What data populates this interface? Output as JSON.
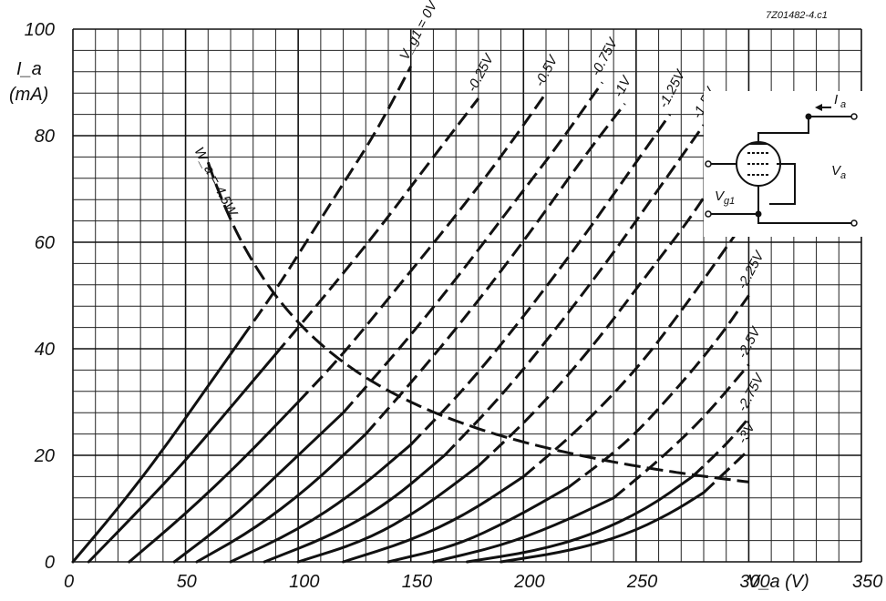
{
  "reference": "7Z01482-4.c1",
  "chart_data": {
    "type": "line",
    "xlabel": "V_a (V)",
    "ylabel_main": "I_a",
    "ylabel_unit": "(mA)",
    "xlim": [
      0,
      350
    ],
    "ylim": [
      0,
      100
    ],
    "xticks": [
      0,
      50,
      100,
      150,
      200,
      250,
      300,
      350
    ],
    "xtick_labels": [
      "0",
      "50",
      "100",
      "150",
      "200",
      "250",
      "300",
      "350"
    ],
    "yticks": [
      0,
      20,
      40,
      60,
      80,
      100
    ],
    "ytick_labels": [
      "0",
      "20",
      "40",
      "60",
      "80",
      "100"
    ],
    "grid": true,
    "dissipation_limit_label": "W_a = 4.5W",
    "dissipation_limit_W": 4.5,
    "series": [
      {
        "name": "V_g1 = 0V",
        "label_text": "0V",
        "prefix": "V_g1 = ",
        "grid_voltage": 0,
        "start": 0,
        "points": [
          [
            0,
            0
          ],
          [
            20,
            10
          ],
          [
            40,
            21
          ],
          [
            60,
            33
          ],
          [
            75,
            42
          ],
          [
            90,
            51
          ],
          [
            105,
            61
          ],
          [
            120,
            71
          ],
          [
            135,
            81
          ],
          [
            150,
            93
          ]
        ]
      },
      {
        "name": "-0.25V",
        "label_text": "-0.25V",
        "grid_voltage": -0.25,
        "start": 7,
        "points": [
          [
            7,
            0
          ],
          [
            30,
            10
          ],
          [
            50,
            19
          ],
          [
            70,
            29
          ],
          [
            90,
            39
          ],
          [
            110,
            49
          ],
          [
            135,
            62
          ],
          [
            160,
            76
          ],
          [
            180,
            87
          ]
        ]
      },
      {
        "name": "-0.5V",
        "label_text": "-0.5V",
        "grid_voltage": -0.5,
        "start": 25,
        "points": [
          [
            25,
            0
          ],
          [
            50,
            9
          ],
          [
            75,
            19
          ],
          [
            100,
            30
          ],
          [
            120,
            39
          ],
          [
            145,
            52
          ],
          [
            170,
            65
          ],
          [
            190,
            76
          ],
          [
            210,
            88
          ]
        ]
      },
      {
        "name": "-0.75V",
        "label_text": "-0.75V",
        "grid_voltage": -0.75,
        "start": 45,
        "points": [
          [
            45,
            0
          ],
          [
            70,
            8
          ],
          [
            95,
            18
          ],
          [
            120,
            28
          ],
          [
            145,
            40
          ],
          [
            170,
            53
          ],
          [
            195,
            67
          ],
          [
            215,
            78
          ],
          [
            235,
            90
          ]
        ]
      },
      {
        "name": "-1V",
        "label_text": "-1V",
        "grid_voltage": -1,
        "start": 55,
        "points": [
          [
            55,
            0
          ],
          [
            80,
            6
          ],
          [
            105,
            14
          ],
          [
            130,
            24
          ],
          [
            155,
            36
          ],
          [
            180,
            49
          ],
          [
            205,
            63
          ],
          [
            225,
            75
          ],
          [
            245,
            86
          ]
        ]
      },
      {
        "name": "-1.25V",
        "label_text": "-1.25V",
        "grid_voltage": -1.25,
        "start": 70,
        "points": [
          [
            70,
            0
          ],
          [
            100,
            6
          ],
          [
            125,
            13
          ],
          [
            150,
            22
          ],
          [
            175,
            33
          ],
          [
            200,
            46
          ],
          [
            225,
            60
          ],
          [
            245,
            72
          ],
          [
            265,
            84
          ]
        ]
      },
      {
        "name": "-1.5V",
        "label_text": "-1.5V",
        "grid_voltage": -1.5,
        "start": 85,
        "points": [
          [
            85,
            0
          ],
          [
            115,
            5
          ],
          [
            140,
            11
          ],
          [
            165,
            20
          ],
          [
            190,
            31
          ],
          [
            215,
            44
          ],
          [
            240,
            58
          ],
          [
            260,
            70
          ],
          [
            280,
            82
          ]
        ]
      },
      {
        "name": "-1.75V",
        "label_text": "-1.75V",
        "grid_voltage": -1.75,
        "start": 100,
        "points": [
          [
            100,
            0
          ],
          [
            130,
            4
          ],
          [
            155,
            10
          ],
          [
            180,
            18
          ],
          [
            205,
            28
          ],
          [
            230,
            40
          ],
          [
            255,
            54
          ],
          [
            275,
            65
          ],
          [
            290,
            75
          ]
        ]
      },
      {
        "name": "-2V",
        "label_text": "-2V",
        "grid_voltage": -2,
        "start": 120,
        "points": [
          [
            120,
            0
          ],
          [
            150,
            4
          ],
          [
            175,
            9
          ],
          [
            200,
            16
          ],
          [
            225,
            25
          ],
          [
            250,
            36
          ],
          [
            270,
            47
          ],
          [
            290,
            59
          ],
          [
            300,
            65
          ]
        ]
      },
      {
        "name": "-2.25V",
        "label_text": "-2.25V",
        "grid_voltage": -2.25,
        "start": 140,
        "points": [
          [
            140,
            0
          ],
          [
            170,
            3
          ],
          [
            195,
            8
          ],
          [
            220,
            14
          ],
          [
            245,
            22
          ],
          [
            265,
            31
          ],
          [
            285,
            41
          ],
          [
            300,
            50
          ]
        ]
      },
      {
        "name": "-2.5V",
        "label_text": "-2.5V",
        "grid_voltage": -2.5,
        "start": 160,
        "points": [
          [
            160,
            0
          ],
          [
            190,
            3
          ],
          [
            215,
            7
          ],
          [
            240,
            12
          ],
          [
            260,
            19
          ],
          [
            280,
            27
          ],
          [
            300,
            37
          ]
        ]
      },
      {
        "name": "-2.75V",
        "label_text": "-2.75V",
        "grid_voltage": -2.75,
        "start": 175,
        "points": [
          [
            175,
            0
          ],
          [
            205,
            2
          ],
          [
            230,
            5
          ],
          [
            255,
            10
          ],
          [
            275,
            16
          ],
          [
            290,
            22
          ],
          [
            300,
            27
          ]
        ]
      },
      {
        "name": "-3V",
        "label_text": "-3V",
        "grid_voltage": -3,
        "start": 190,
        "points": [
          [
            190,
            0
          ],
          [
            220,
            2
          ],
          [
            245,
            5
          ],
          [
            265,
            9
          ],
          [
            280,
            13
          ],
          [
            290,
            17
          ],
          [
            300,
            21
          ]
        ]
      }
    ]
  }
}
